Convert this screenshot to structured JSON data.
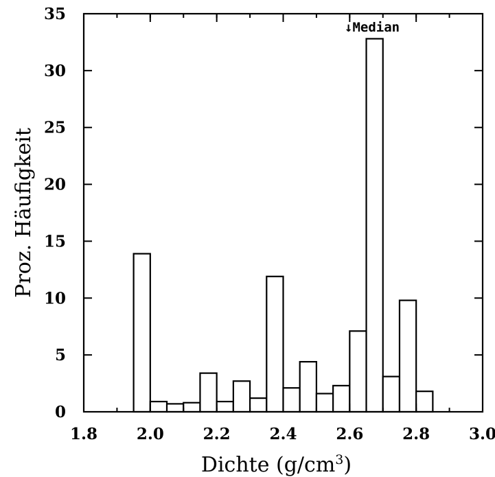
{
  "chart_data": {
    "type": "bar",
    "title": "",
    "xlabel": "Dichte (g/cm",
    "xlabel_sup": "3",
    "xlabel_close": ")",
    "ylabel": "Proz. Häufigkeit",
    "xlim": [
      1.8,
      3.0
    ],
    "ylim": [
      0,
      35
    ],
    "xticks": [
      1.8,
      2.0,
      2.2,
      2.4,
      2.6,
      2.8,
      3.0
    ],
    "xtick_labels": [
      "1.8",
      "2.0",
      "2.2",
      "2.4",
      "2.6",
      "2.8",
      "3.0"
    ],
    "yticks": [
      0,
      5,
      10,
      15,
      20,
      25,
      30,
      35
    ],
    "ytick_labels": [
      "0",
      "5",
      "10",
      "15",
      "20",
      "25",
      "30",
      "35"
    ],
    "bin_width": 0.05,
    "bins": [
      {
        "x0": 1.95,
        "value": 13.9
      },
      {
        "x0": 2.0,
        "value": 0.9
      },
      {
        "x0": 2.05,
        "value": 0.7
      },
      {
        "x0": 2.1,
        "value": 0.8
      },
      {
        "x0": 2.15,
        "value": 3.4
      },
      {
        "x0": 2.2,
        "value": 0.9
      },
      {
        "x0": 2.25,
        "value": 2.7
      },
      {
        "x0": 2.3,
        "value": 1.2
      },
      {
        "x0": 2.35,
        "value": 11.9
      },
      {
        "x0": 2.4,
        "value": 2.1
      },
      {
        "x0": 2.45,
        "value": 4.4
      },
      {
        "x0": 2.5,
        "value": 1.6
      },
      {
        "x0": 2.55,
        "value": 2.3
      },
      {
        "x0": 2.6,
        "value": 7.1
      },
      {
        "x0": 2.65,
        "value": 32.8
      },
      {
        "x0": 2.7,
        "value": 3.1
      },
      {
        "x0": 2.75,
        "value": 9.8
      },
      {
        "x0": 2.8,
        "value": 1.8
      }
    ],
    "annotations": [
      {
        "text": "↓Median",
        "x": 2.68,
        "y": 35
      }
    ],
    "grid": false,
    "colors": {
      "bar_fill": "#ffffff",
      "bar_edge": "#000000"
    }
  }
}
